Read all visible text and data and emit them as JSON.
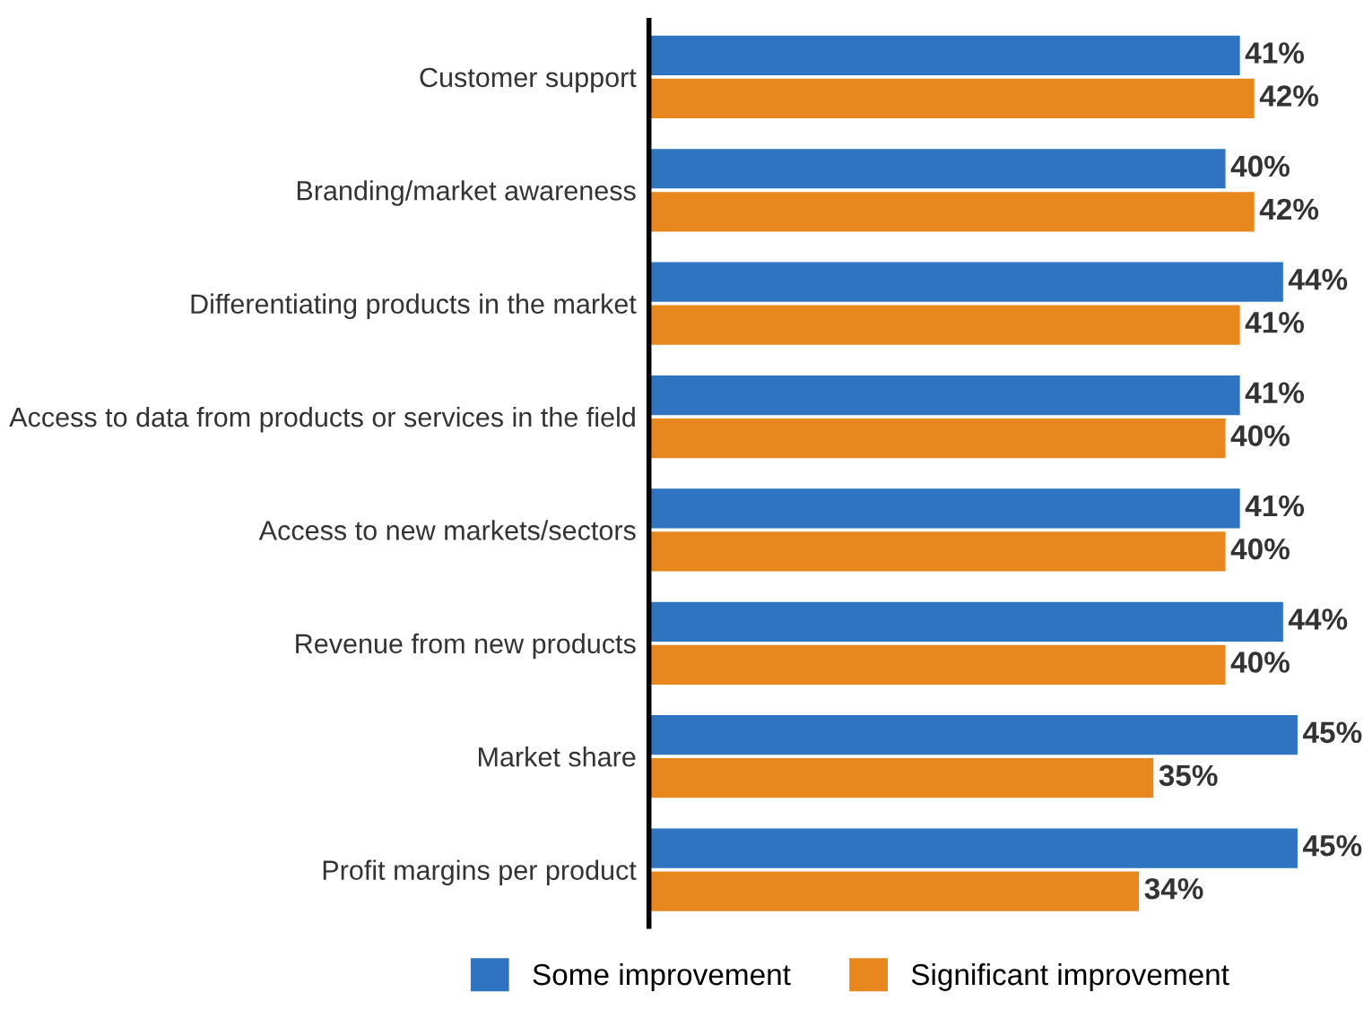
{
  "chart_data": {
    "type": "bar",
    "orientation": "horizontal",
    "categories": [
      "Customer support",
      "Branding/market awareness",
      "Differentiating products in the market",
      "Access to data from products or services in the field",
      "Access to new markets/sectors",
      "Revenue from new products",
      "Market share",
      "Profit margins per product"
    ],
    "series": [
      {
        "name": "Some improvement",
        "color": "#2f74c0",
        "values": [
          41,
          40,
          44,
          41,
          41,
          44,
          45,
          45
        ],
        "value_labels": [
          "41%",
          "40%",
          "44%",
          "41%",
          "41%",
          "44%",
          "45%",
          "45%"
        ]
      },
      {
        "name": "Significant improvement",
        "color": "#e8871e",
        "values": [
          42,
          42,
          41,
          40,
          40,
          40,
          35,
          34
        ],
        "value_labels": [
          "42%",
          "42%",
          "41%",
          "40%",
          "40%",
          "40%",
          "35%",
          "34%"
        ]
      }
    ],
    "legend": "bottom",
    "grid": false
  }
}
